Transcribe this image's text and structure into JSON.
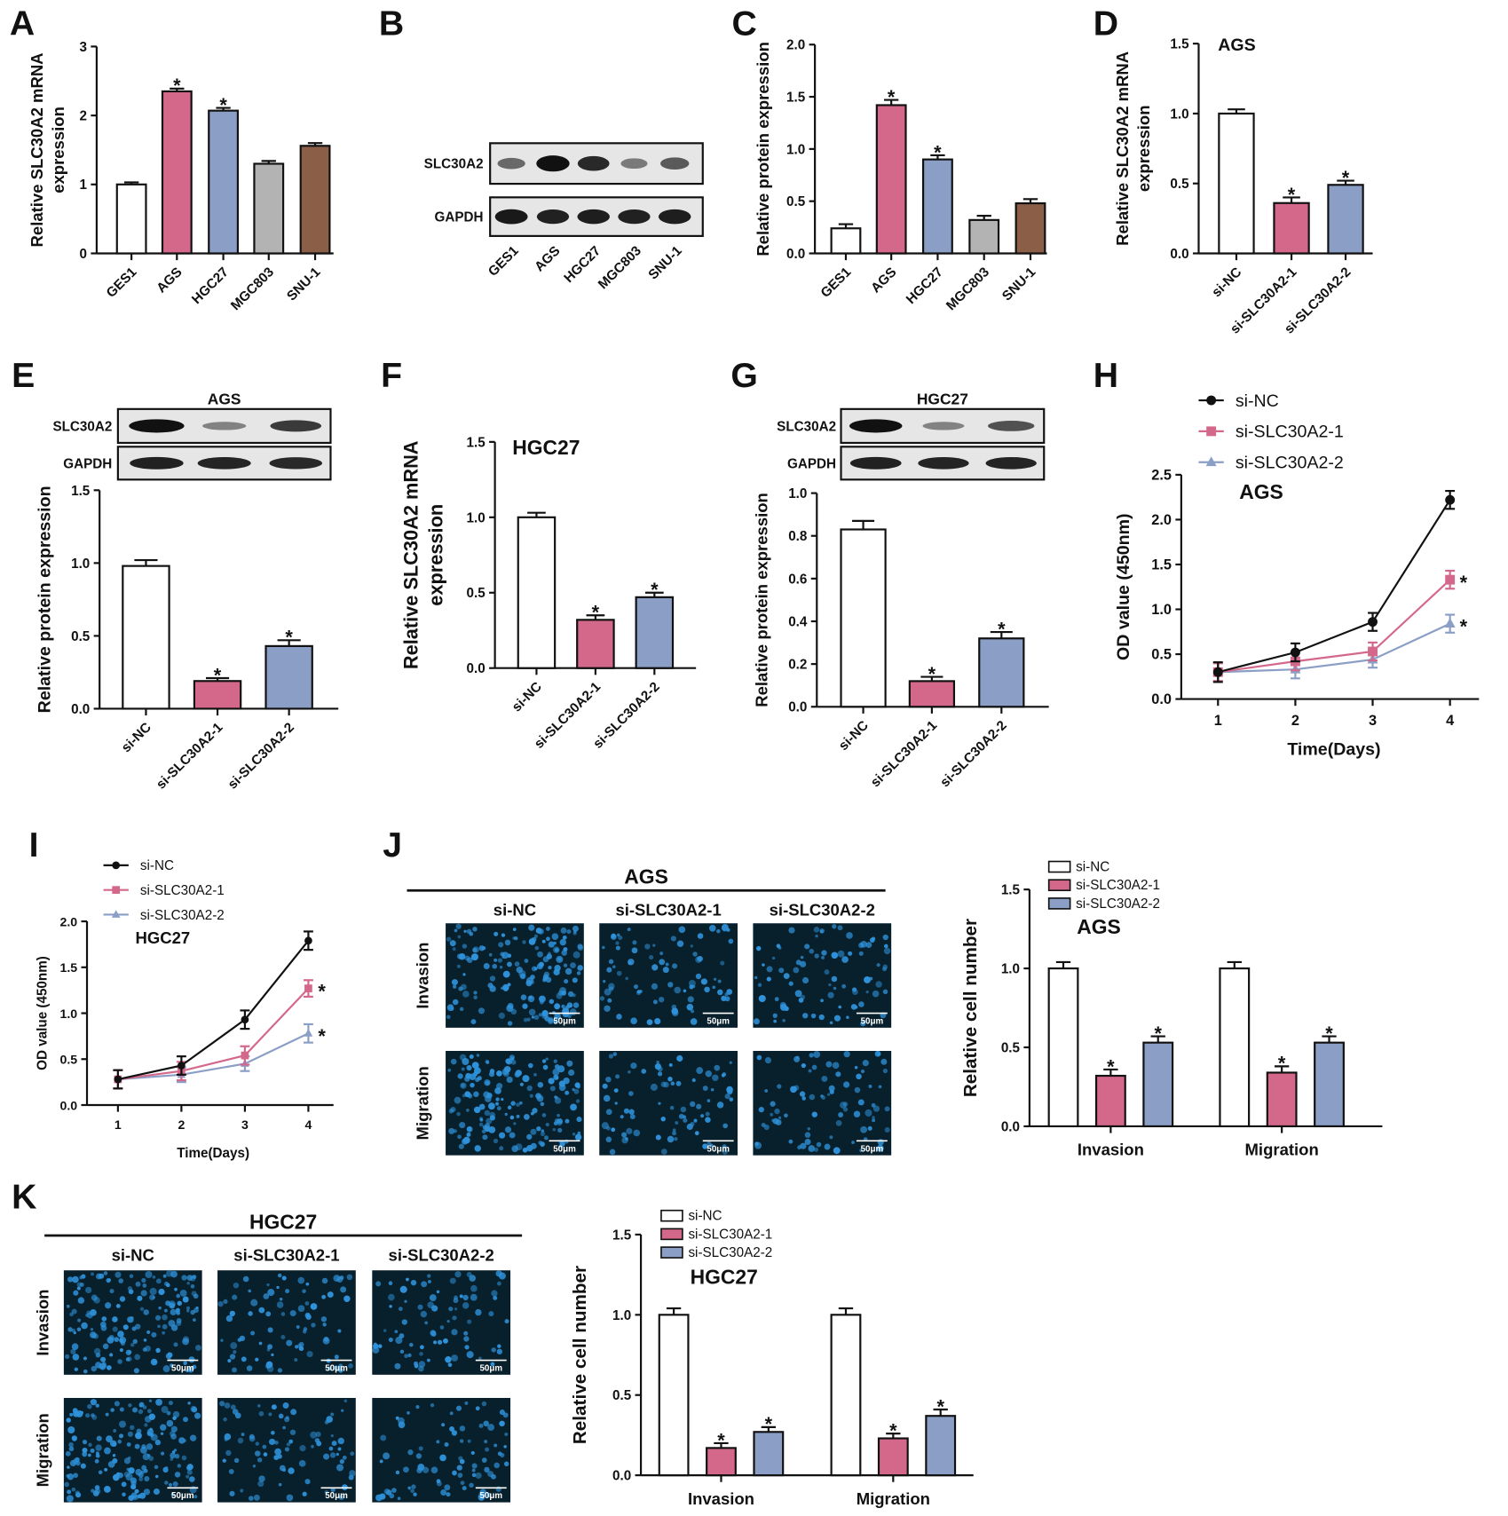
{
  "panel_letters": [
    "A",
    "B",
    "C",
    "D",
    "E",
    "F",
    "G",
    "H",
    "I",
    "J",
    "K"
  ],
  "colors": {
    "white": "#ffffff",
    "pink": "#d4688a",
    "blue": "#8a9ec6",
    "gray": "#b3b3b3",
    "brown": "#8b5e48",
    "black": "#111111",
    "cells": "#2f93dc",
    "field": "#08202c"
  },
  "blots": {
    "B": {
      "rows": [
        "SLC30A2",
        "GAPDH"
      ],
      "lanes": [
        "GES1",
        "AGS",
        "HGC27",
        "MGC803",
        "SNU-1"
      ],
      "intensity": [
        [
          0.45,
          1.0,
          0.85,
          0.35,
          0.55
        ],
        [
          0.95,
          0.9,
          0.92,
          0.9,
          0.92
        ]
      ]
    },
    "E": {
      "title": "AGS",
      "rows": [
        "SLC30A2",
        "GAPDH"
      ],
      "intensity": [
        [
          1.0,
          0.3,
          0.75
        ],
        [
          0.9,
          0.88,
          0.85
        ]
      ]
    },
    "G": {
      "title": "HGC27",
      "rows": [
        "SLC30A2",
        "GAPDH"
      ],
      "intensity": [
        [
          1.0,
          0.3,
          0.6
        ],
        [
          0.9,
          0.88,
          0.88
        ]
      ]
    }
  },
  "microscopy": {
    "J": {
      "title": "AGS",
      "columns": [
        "si-NC",
        "si-SLC30A2-1",
        "si-SLC30A2-2"
      ],
      "rows": [
        "Invasion",
        "Migration"
      ],
      "scale_bar": "50μm"
    },
    "K": {
      "title": "HGC27",
      "columns": [
        "si-NC",
        "si-SLC30A2-1",
        "si-SLC30A2-2"
      ],
      "rows": [
        "Invasion",
        "Migration"
      ],
      "scale_bar": "50μm"
    }
  },
  "chart_data": [
    {
      "id": "A",
      "type": "bar",
      "title": "",
      "ylabel": [
        "Relative SLC30A2 mRNA",
        "expression"
      ],
      "categories": [
        "GES1",
        "AGS",
        "HGC27",
        "MGC803",
        "SNU-1"
      ],
      "values": [
        1.0,
        2.35,
        2.07,
        1.3,
        1.56
      ],
      "errors": [
        0.03,
        0.04,
        0.04,
        0.04,
        0.04
      ],
      "significant": [
        false,
        true,
        true,
        false,
        false
      ],
      "colors": [
        "#ffffff",
        "#d4688a",
        "#8a9ec6",
        "#b3b3b3",
        "#8b5e48"
      ],
      "ylim": [
        0,
        3
      ],
      "yticks": [
        "0",
        "1",
        "2",
        "3"
      ],
      "ytick_values": [
        0,
        1,
        2,
        3
      ]
    },
    {
      "id": "C",
      "type": "bar",
      "title": "",
      "ylabel": [
        "Relative protein expression"
      ],
      "categories": [
        "GES1",
        "AGS",
        "HGC27",
        "MGC803",
        "SNU-1"
      ],
      "values": [
        0.24,
        1.42,
        0.9,
        0.32,
        0.48
      ],
      "errors": [
        0.04,
        0.05,
        0.04,
        0.04,
        0.04
      ],
      "significant": [
        false,
        true,
        true,
        false,
        false
      ],
      "colors": [
        "#ffffff",
        "#d4688a",
        "#8a9ec6",
        "#b3b3b3",
        "#8b5e48"
      ],
      "ylim": [
        0,
        2
      ],
      "yticks": [
        "0.0",
        "0.5",
        "1.0",
        "1.5",
        "2.0"
      ],
      "ytick_values": [
        0,
        0.5,
        1,
        1.5,
        2
      ]
    },
    {
      "id": "D",
      "type": "bar",
      "title": "AGS",
      "ylabel": [
        "Relative SLC30A2 mRNA",
        "expression"
      ],
      "categories": [
        "si-NC",
        "si-SLC30A2-1",
        "si-SLC30A2-2"
      ],
      "values": [
        1.0,
        0.36,
        0.49
      ],
      "errors": [
        0.03,
        0.04,
        0.03
      ],
      "significant": [
        false,
        true,
        true
      ],
      "colors": [
        "#ffffff",
        "#d4688a",
        "#8a9ec6"
      ],
      "ylim": [
        0,
        1.5
      ],
      "yticks": [
        "0.0",
        "0.5",
        "1.0",
        "1.5"
      ],
      "ytick_values": [
        0,
        0.5,
        1,
        1.5
      ]
    },
    {
      "id": "E",
      "type": "bar",
      "title": "",
      "ylabel": [
        "Relative protein expression"
      ],
      "categories": [
        "si-NC",
        "si-SLC30A2-1",
        "si-SLC30A2-2"
      ],
      "values": [
        0.98,
        0.19,
        0.43
      ],
      "errors": [
        0.04,
        0.02,
        0.04
      ],
      "significant": [
        false,
        true,
        true
      ],
      "colors": [
        "#ffffff",
        "#d4688a",
        "#8a9ec6"
      ],
      "ylim": [
        0,
        1.5
      ],
      "yticks": [
        "0.0",
        "0.5",
        "1.0",
        "1.5"
      ],
      "ytick_values": [
        0,
        0.5,
        1,
        1.5
      ]
    },
    {
      "id": "F",
      "type": "bar",
      "title": "HGC27",
      "ylabel": [
        "Relative SLC30A2 mRNA",
        "expression"
      ],
      "categories": [
        "si-NC",
        "si-SLC30A2-1",
        "si-SLC30A2-2"
      ],
      "values": [
        1.0,
        0.32,
        0.47
      ],
      "errors": [
        0.03,
        0.03,
        0.03
      ],
      "significant": [
        false,
        true,
        true
      ],
      "colors": [
        "#ffffff",
        "#d4688a",
        "#8a9ec6"
      ],
      "ylim": [
        0,
        1.5
      ],
      "yticks": [
        "0.0",
        "0.5",
        "1.0",
        "1.5"
      ],
      "ytick_values": [
        0,
        0.5,
        1,
        1.5
      ]
    },
    {
      "id": "G",
      "type": "bar",
      "title": "",
      "ylabel": [
        "Relative protein expression"
      ],
      "categories": [
        "si-NC",
        "si-SLC30A2-1",
        "si-SLC30A2-2"
      ],
      "values": [
        0.83,
        0.12,
        0.32
      ],
      "errors": [
        0.04,
        0.02,
        0.03
      ],
      "significant": [
        false,
        true,
        true
      ],
      "colors": [
        "#ffffff",
        "#d4688a",
        "#8a9ec6"
      ],
      "ylim": [
        0,
        1
      ],
      "yticks": [
        "0.0",
        "0.2",
        "0.4",
        "0.6",
        "0.8",
        "1.0"
      ],
      "ytick_values": [
        0,
        0.2,
        0.4,
        0.6,
        0.8,
        1
      ]
    },
    {
      "id": "H",
      "type": "line",
      "title": "AGS",
      "xlabel": "Time(Days)",
      "ylabel": [
        "OD value (450nm)"
      ],
      "x": [
        1,
        2,
        3,
        4
      ],
      "xticks": [
        "1",
        "2",
        "3",
        "4"
      ],
      "ylim": [
        0,
        2.5
      ],
      "yticks": [
        "0.0",
        "0.5",
        "1.0",
        "1.5",
        "2.0",
        "2.5"
      ],
      "ytick_values": [
        0,
        0.5,
        1,
        1.5,
        2,
        2.5
      ],
      "series": [
        {
          "name": "si-NC",
          "values": [
            0.3,
            0.52,
            0.86,
            2.22
          ],
          "errors": [
            0.11,
            0.1,
            0.1,
            0.1
          ],
          "color": "#111111",
          "marker": "circle",
          "significant": false
        },
        {
          "name": "si-SLC30A2-1",
          "values": [
            0.3,
            0.42,
            0.53,
            1.33
          ],
          "errors": [
            0.1,
            0.1,
            0.1,
            0.1
          ],
          "color": "#d4688a",
          "marker": "square",
          "significant": true
        },
        {
          "name": "si-SLC30A2-2",
          "values": [
            0.3,
            0.33,
            0.44,
            0.84
          ],
          "errors": [
            0.1,
            0.1,
            0.09,
            0.1
          ],
          "color": "#8a9ec6",
          "marker": "triangle",
          "significant": true
        }
      ]
    },
    {
      "id": "I",
      "type": "line",
      "title": "HGC27",
      "xlabel": "Time(Days)",
      "ylabel": [
        "OD value (450nm)"
      ],
      "x": [
        1,
        2,
        3,
        4
      ],
      "xticks": [
        "1",
        "2",
        "3",
        "4"
      ],
      "ylim": [
        0,
        2
      ],
      "yticks": [
        "0.0",
        "0.5",
        "1.0",
        "1.5",
        "2.0"
      ],
      "ytick_values": [
        0,
        0.5,
        1,
        1.5,
        2
      ],
      "series": [
        {
          "name": "si-NC",
          "values": [
            0.28,
            0.43,
            0.93,
            1.79
          ],
          "errors": [
            0.1,
            0.1,
            0.1,
            0.1
          ],
          "color": "#111111",
          "marker": "circle",
          "significant": false
        },
        {
          "name": "si-SLC30A2-1",
          "values": [
            0.28,
            0.37,
            0.54,
            1.27
          ],
          "errors": [
            0.1,
            0.1,
            0.1,
            0.09
          ],
          "color": "#d4688a",
          "marker": "square",
          "significant": true
        },
        {
          "name": "si-SLC30A2-2",
          "values": [
            0.28,
            0.33,
            0.45,
            0.78
          ],
          "errors": [
            0.1,
            0.08,
            0.08,
            0.1
          ],
          "color": "#8a9ec6",
          "marker": "triangle",
          "significant": true
        }
      ]
    },
    {
      "id": "J",
      "type": "bar",
      "grouped": true,
      "title": "AGS",
      "ylabel": [
        "Relative cell number"
      ],
      "categories": [
        "Invasion",
        "Migration"
      ],
      "ylim": [
        0,
        1.5
      ],
      "yticks": [
        "0.0",
        "0.5",
        "1.0",
        "1.5"
      ],
      "ytick_values": [
        0,
        0.5,
        1,
        1.5
      ],
      "series": [
        {
          "name": "si-NC",
          "values": [
            1.0,
            1.0
          ],
          "errors": [
            0.04,
            0.04
          ],
          "color": "#ffffff",
          "significant": false
        },
        {
          "name": "si-SLC30A2-1",
          "values": [
            0.32,
            0.34
          ],
          "errors": [
            0.04,
            0.04
          ],
          "color": "#d4688a",
          "significant": true
        },
        {
          "name": "si-SLC30A2-2",
          "values": [
            0.53,
            0.53
          ],
          "errors": [
            0.04,
            0.04
          ],
          "color": "#8a9ec6",
          "significant": true
        }
      ]
    },
    {
      "id": "K",
      "type": "bar",
      "grouped": true,
      "title": "HGC27",
      "ylabel": [
        "Relative cell number"
      ],
      "categories": [
        "Invasion",
        "Migration"
      ],
      "ylim": [
        0,
        1.5
      ],
      "yticks": [
        "0.0",
        "0.5",
        "1.0",
        "1.5"
      ],
      "ytick_values": [
        0,
        0.5,
        1,
        1.5
      ],
      "series": [
        {
          "name": "si-NC",
          "values": [
            1.0,
            1.0
          ],
          "errors": [
            0.04,
            0.04
          ],
          "color": "#ffffff",
          "significant": false
        },
        {
          "name": "si-SLC30A2-1",
          "values": [
            0.17,
            0.23
          ],
          "errors": [
            0.03,
            0.03
          ],
          "color": "#d4688a",
          "significant": true
        },
        {
          "name": "si-SLC30A2-2",
          "values": [
            0.27,
            0.37
          ],
          "errors": [
            0.03,
            0.04
          ],
          "color": "#8a9ec6",
          "significant": true
        }
      ]
    }
  ],
  "significance_mark": "*"
}
